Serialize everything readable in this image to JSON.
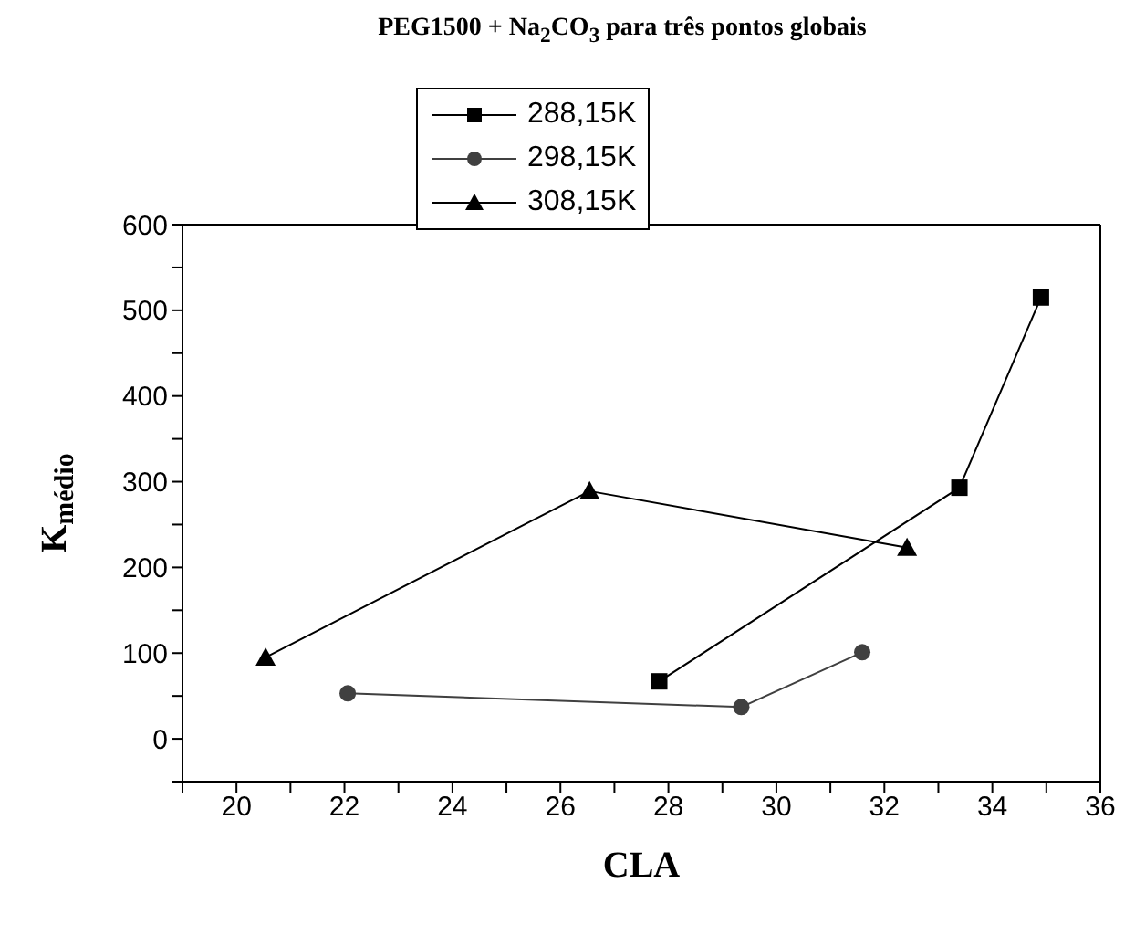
{
  "chart_data": {
    "type": "line",
    "title": "PEG1500 + Na$_{2}$CO$_{3}$  para três pontos globais",
    "xlabel": "CLA",
    "ylabel": "K$_{médio}$",
    "xlim": [
      19,
      36
    ],
    "xticks": [
      {
        "value": 19,
        "label": null
      },
      20,
      {
        "value": 21,
        "label": null
      },
      22,
      {
        "value": 23,
        "label": null
      },
      24,
      {
        "value": 25,
        "label": null
      },
      26,
      {
        "value": 27,
        "label": null
      },
      28,
      {
        "value": 29,
        "label": null
      },
      30,
      {
        "value": 31,
        "label": null
      },
      32,
      {
        "value": 33,
        "label": null
      },
      34,
      {
        "value": 35,
        "label": null
      },
      36
    ],
    "ylim": [
      -50,
      600
    ],
    "yticks": [
      {
        "value": -50,
        "label": null
      },
      0,
      {
        "value": 50,
        "label": null
      },
      100,
      {
        "value": 150,
        "label": null
      },
      200,
      {
        "value": 250,
        "label": null
      },
      300,
      {
        "value": 350,
        "label": null
      },
      400,
      {
        "value": 450,
        "label": null
      },
      500,
      {
        "value": 550,
        "label": null
      },
      600
    ],
    "legend": "top",
    "grid": false,
    "line_style": "solid",
    "series": [
      {
        "name": "288,15K",
        "color": "#000000",
        "marker": "square",
        "x": [
          27.83,
          33.39,
          34.9
        ],
        "values": [
          67,
          293,
          515
        ]
      },
      {
        "name": "298,15K",
        "color": "#404040",
        "marker": "circle",
        "x": [
          22.06,
          29.35,
          31.59
        ],
        "values": [
          53,
          37,
          101
        ]
      },
      {
        "name": "308,15K",
        "color": "#000000",
        "marker": "triangle",
        "x": [
          20.54,
          26.54,
          32.42
        ],
        "values": [
          95,
          289,
          223
        ]
      }
    ]
  }
}
